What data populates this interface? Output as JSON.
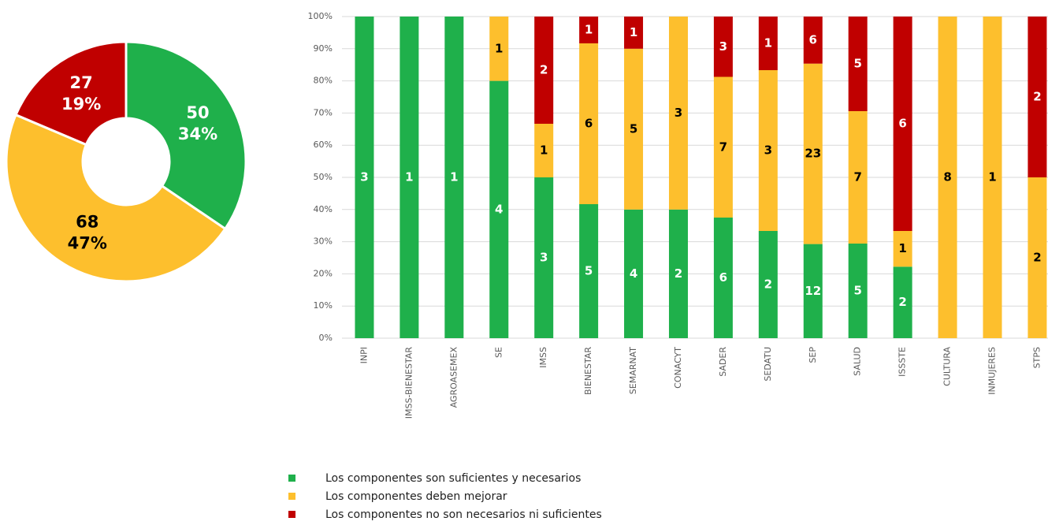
{
  "chart_data": [
    {
      "type": "donut",
      "values": [
        50,
        68,
        27
      ],
      "percent_labels": [
        "34%",
        "47%",
        "19%"
      ],
      "colors": [
        "#1fb04b",
        "#fdbf2d",
        "#c00000"
      ],
      "label_colors": [
        "#ffffff",
        "#000000",
        "#ffffff"
      ]
    },
    {
      "type": "bar",
      "stacked_percent": true,
      "categories": [
        "INPI",
        "IMSS-BIENESTAR",
        "AGROASEMEX",
        "SE",
        "IMSS",
        "BIENESTAR",
        "SEMARNAT",
        "CONACYT",
        "SADER",
        "SEDATU",
        "SEP",
        "SALUD",
        "ISSSTE",
        "CULTURA",
        "INMUJERES",
        "STPS"
      ],
      "series": [
        {
          "name": "Los componentes son suficientes y necesarios",
          "color": "#1fb04b",
          "label_color": "#ffffff",
          "values": [
            3,
            1,
            1,
            4,
            3,
            5,
            4,
            2,
            6,
            2,
            12,
            5,
            2,
            null,
            null,
            null
          ]
        },
        {
          "name": "Los componentes deben mejorar",
          "color": "#fdbf2d",
          "label_color": "#000000",
          "values": [
            null,
            null,
            null,
            1,
            1,
            6,
            5,
            3,
            7,
            3,
            23,
            7,
            1,
            8,
            1,
            2
          ]
        },
        {
          "name": "Los componentes no son necesarios ni suficientes",
          "color": "#c00000",
          "label_color": "#ffffff",
          "values": [
            null,
            null,
            null,
            null,
            2,
            1,
            1,
            null,
            3,
            1,
            6,
            5,
            6,
            null,
            null,
            2
          ]
        }
      ],
      "ylim": [
        0,
        100
      ],
      "yticks": [
        {
          "value": 0,
          "label": "0%"
        },
        {
          "value": 10,
          "label": "10%"
        },
        {
          "value": 20,
          "label": "20%"
        },
        {
          "value": 30,
          "label": "30%"
        },
        {
          "value": 40,
          "label": "40%"
        },
        {
          "value": 50,
          "label": "50%"
        },
        {
          "value": 60,
          "label": "60%"
        },
        {
          "value": 70,
          "label": "70%"
        },
        {
          "value": 80,
          "label": "80%"
        },
        {
          "value": 90,
          "label": "90%"
        },
        {
          "value": 100,
          "label": "100%"
        }
      ],
      "grid": true
    }
  ]
}
